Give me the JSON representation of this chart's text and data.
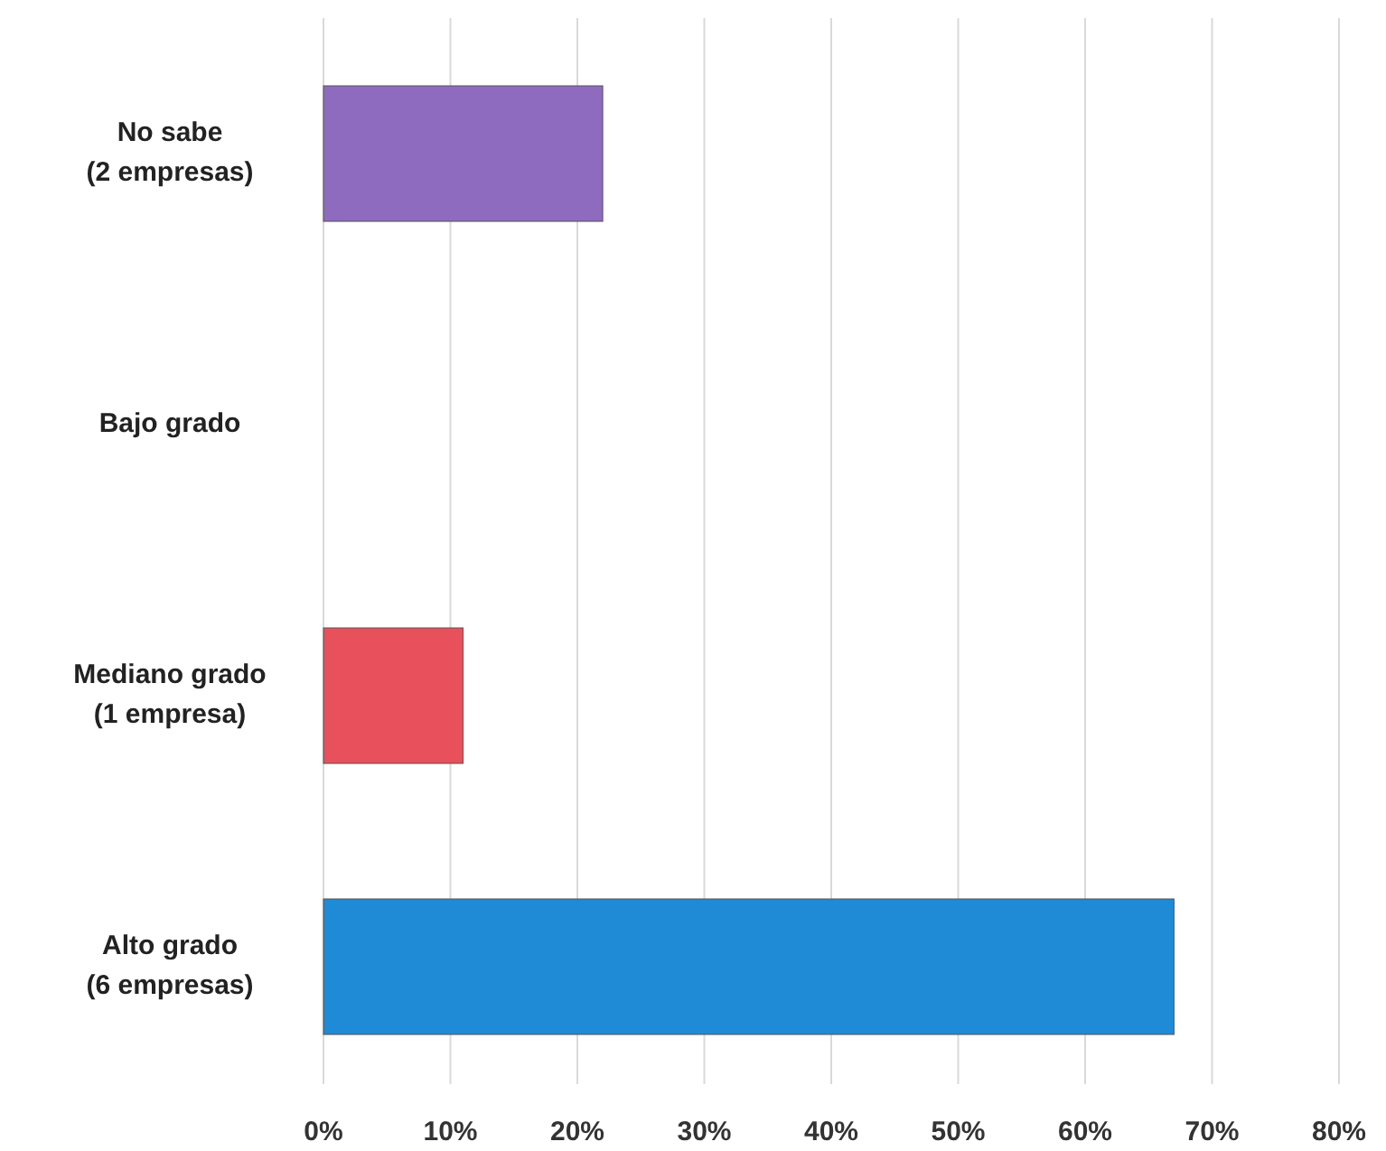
{
  "chart_data": {
    "type": "bar",
    "orientation": "horizontal",
    "categories": [
      "No sabe\n(2 empresas)",
      "Bajo grado",
      "Mediano grado\n(1 empresa)",
      "Alto grado\n(6 empresas)"
    ],
    "values": [
      22,
      0,
      11,
      67
    ],
    "colors": [
      "#8e6bbf",
      "#c8c8c8",
      "#e8505b",
      "#1f8ad6"
    ],
    "xlim": [
      0,
      80
    ],
    "xticks": [
      {
        "value": 0,
        "label": "0%"
      },
      {
        "value": 10,
        "label": "10%"
      },
      {
        "value": 20,
        "label": "20%"
      },
      {
        "value": 30,
        "label": "30%"
      },
      {
        "value": 40,
        "label": "40%"
      },
      {
        "value": 50,
        "label": "50%"
      },
      {
        "value": 60,
        "label": "60%"
      },
      {
        "value": 70,
        "label": "70%"
      },
      {
        "value": 80,
        "label": "80%"
      }
    ],
    "grid": "x"
  }
}
